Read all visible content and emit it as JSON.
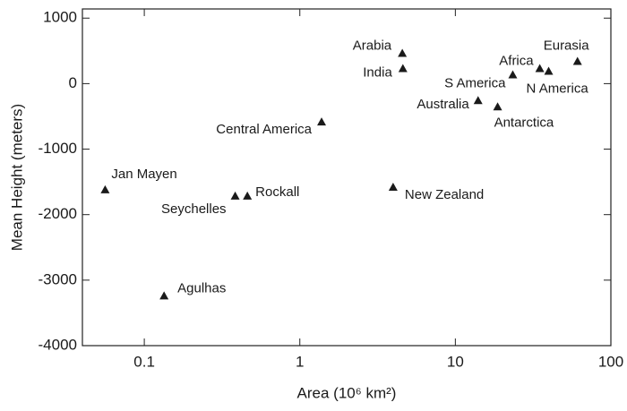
{
  "chart_data": {
    "type": "scatter",
    "xlabel": "Area  (10⁶ km²)",
    "ylabel": "Mean Height  (meters)",
    "xscale": "log",
    "marker": "triangle",
    "color": "#1a1a1a",
    "labels": [
      "Jan Mayen",
      "Agulhas",
      "Seychelles",
      "Rockall",
      "Central America",
      "New Zealand",
      "Arabia",
      "India",
      "Australia",
      "Antarctica",
      "S America",
      "Africa",
      "N America",
      "Eurasia"
    ],
    "x": [
      0.056,
      0.134,
      0.384,
      0.46,
      1.38,
      3.98,
      4.56,
      4.6,
      14,
      18.7,
      23.4,
      34.9,
      39.8,
      61
    ],
    "values": [
      -1620,
      -3240,
      -1715,
      -1715,
      -585,
      -1580,
      463,
      231,
      -258,
      -354,
      136,
      231,
      190,
      340
    ],
    "xlim": [
      0.04,
      100
    ],
    "ylim": [
      -4000,
      1140
    ],
    "xticks": [
      0.1,
      1,
      10,
      100
    ],
    "yticks": [
      1000,
      0,
      -1000,
      -2000,
      -3000,
      -4000
    ]
  }
}
